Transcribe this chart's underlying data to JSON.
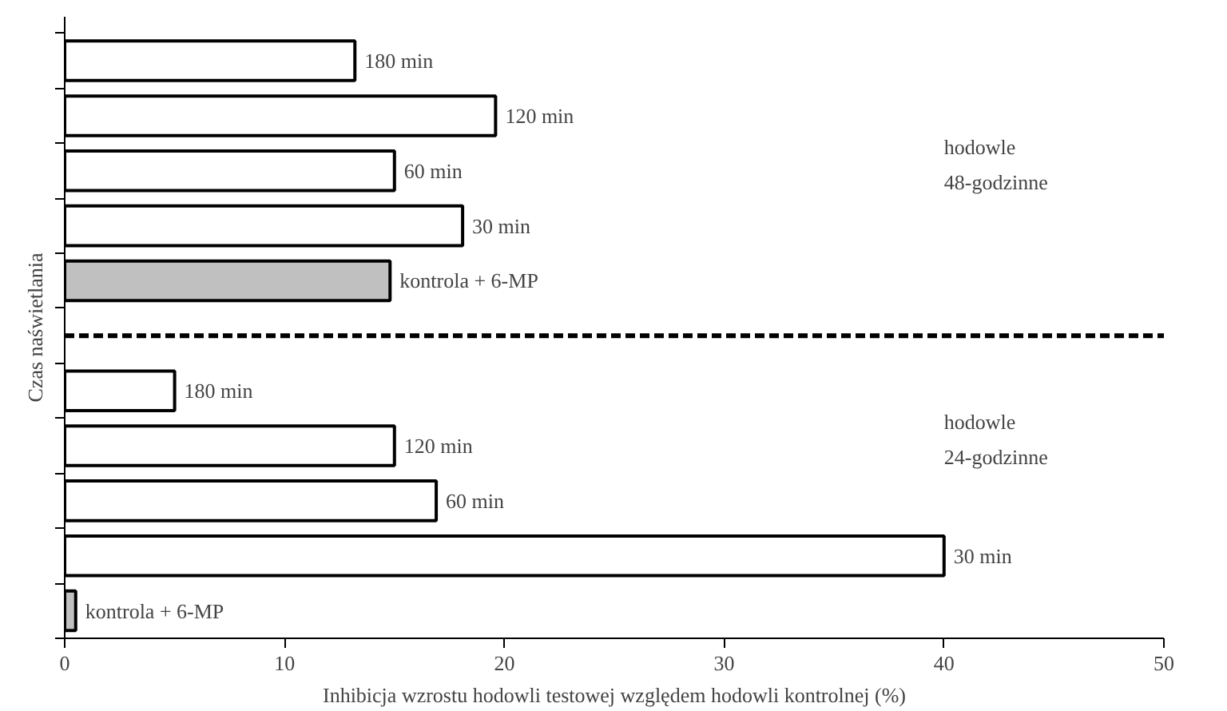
{
  "chart_data": {
    "type": "bar",
    "orientation": "horizontal",
    "xlabel": "Inhibicja wzrostu hodowli testowej względem hodowli kontrolnej (%)",
    "ylabel": "Czas naświetlania",
    "categories": [
      "180 min",
      "120 min",
      "60 min",
      "30 min",
      "kontrola + 6-MP",
      null,
      "180 min",
      "120 min",
      "60 min",
      "30 min",
      "kontrola + 6-MP"
    ],
    "values": [
      13.2,
      19.6,
      15.0,
      18.1,
      14.8,
      null,
      5.0,
      15.0,
      16.9,
      40.0,
      0.5
    ],
    "colors": [
      "#ffffff",
      "#ffffff",
      "#ffffff",
      "#ffffff",
      "#c0c0c0",
      null,
      "#ffffff",
      "#ffffff",
      "#ffffff",
      "#ffffff",
      "#c0c0c0"
    ],
    "xlim": [
      0,
      50
    ],
    "xticks": [
      0,
      10,
      20,
      30,
      40,
      50
    ],
    "grid": false,
    "ref_lines": [
      {
        "axis": "y",
        "value": null,
        "line_style": "dashed",
        "color": "#000000"
      }
    ],
    "annotations": [
      "hodowle\n48-godzinne",
      "hodowle\n24-godzinne"
    ]
  }
}
